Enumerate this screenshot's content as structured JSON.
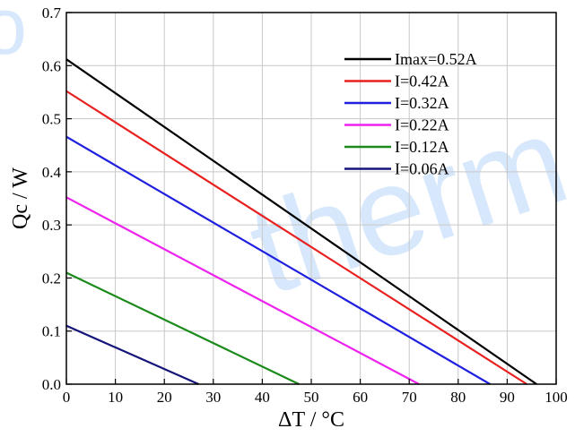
{
  "chart_data": {
    "type": "line",
    "xlabel": "ΔT / °C",
    "ylabel": "Qc / W",
    "xlim": [
      0,
      100
    ],
    "ylim": [
      0,
      0.7
    ],
    "xticks": [
      "0",
      "10",
      "20",
      "30",
      "40",
      "50",
      "60",
      "70",
      "80",
      "90",
      "100"
    ],
    "yticks": [
      "0.0",
      "0.1",
      "0.2",
      "0.3",
      "0.4",
      "0.5",
      "0.6",
      "0.7"
    ],
    "grid": true,
    "legend_position": "top-right",
    "series": [
      {
        "name": "Imax=0.52A",
        "color": "#000000",
        "x": [
          0,
          96
        ],
        "y": [
          0.612,
          0.0
        ]
      },
      {
        "name": "I=0.42A",
        "color": "#e8201f",
        "x": [
          0,
          94
        ],
        "y": [
          0.552,
          0.0
        ]
      },
      {
        "name": "I=0.32A",
        "color": "#1f1fe0",
        "x": [
          0,
          86.5
        ],
        "y": [
          0.466,
          0.0
        ]
      },
      {
        "name": "I=0.22A",
        "color": "#ee22ee",
        "x": [
          0,
          72
        ],
        "y": [
          0.352,
          0.0
        ]
      },
      {
        "name": "I=0.12A",
        "color": "#1a8a1a",
        "x": [
          0,
          47.5
        ],
        "y": [
          0.21,
          0.0
        ]
      },
      {
        "name": "I=0.06A",
        "color": "#14147a",
        "x": [
          0,
          27
        ],
        "y": [
          0.11,
          0.0
        ]
      }
    ]
  }
}
